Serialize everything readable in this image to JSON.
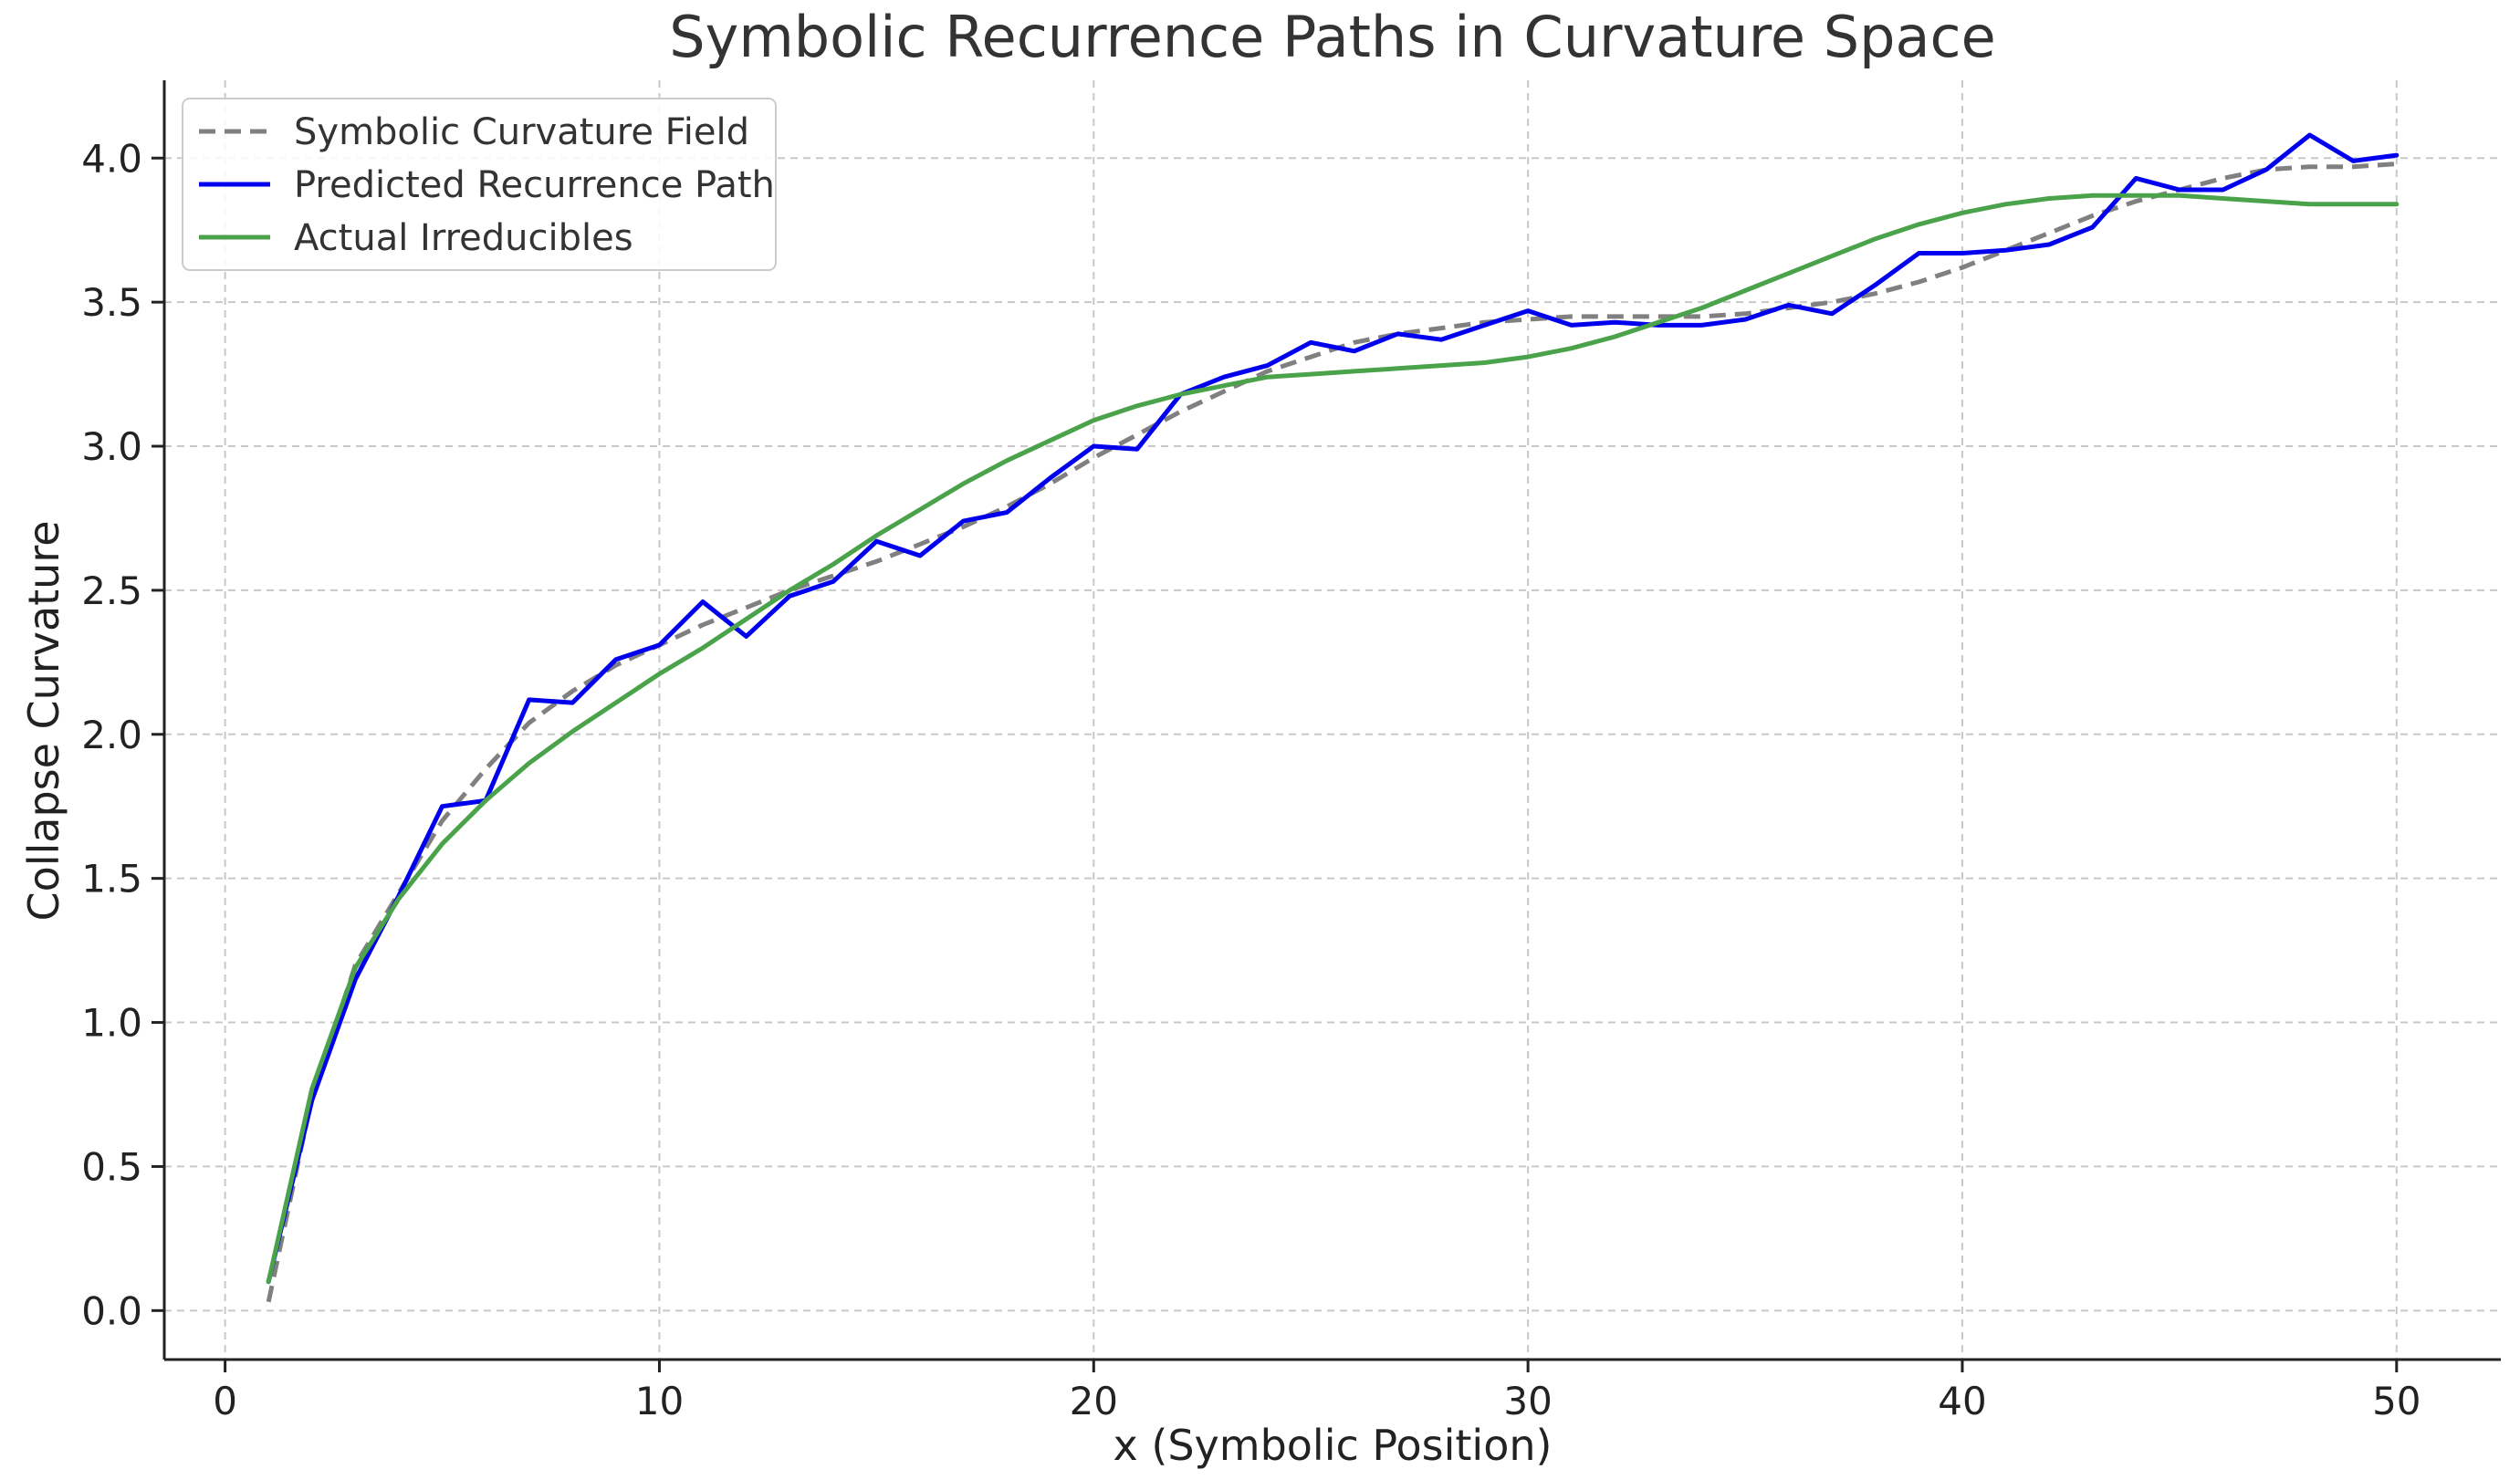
{
  "chart_data": {
    "type": "line",
    "title": "Symbolic Recurrence Paths in Curvature Space",
    "xlabel": "x (Symbolic Position)",
    "ylabel": "Collapse Curvature",
    "xlim": [
      -1.4,
      52.4
    ],
    "ylim": [
      -0.17,
      4.27
    ],
    "x_ticks": [
      0,
      10,
      20,
      30,
      40,
      50
    ],
    "y_ticks": [
      0.0,
      0.5,
      1.0,
      1.5,
      2.0,
      2.5,
      3.0,
      3.5,
      4.0
    ],
    "x_tick_labels": [
      "0",
      "10",
      "20",
      "30",
      "40",
      "50"
    ],
    "y_tick_labels": [
      "0.0",
      "0.5",
      "1.0",
      "1.5",
      "2.0",
      "2.5",
      "3.0",
      "3.5",
      "4.0"
    ],
    "grid": true,
    "legend_position": "top-left",
    "x": [
      1,
      2,
      3,
      4,
      5,
      6,
      7,
      8,
      9,
      10,
      11,
      12,
      13,
      14,
      15,
      16,
      17,
      18,
      19,
      20,
      21,
      22,
      23,
      24,
      25,
      26,
      27,
      28,
      29,
      30,
      31,
      32,
      33,
      34,
      35,
      36,
      37,
      38,
      39,
      40,
      41,
      42,
      43,
      44,
      45,
      46,
      47,
      48,
      49,
      50
    ],
    "series": [
      {
        "name": "Symbolic Curvature Field",
        "color": "#808080",
        "style": "dashed",
        "values": [
          0.03,
          0.74,
          1.2,
          1.45,
          1.7,
          1.88,
          2.04,
          2.15,
          2.24,
          2.31,
          2.38,
          2.44,
          2.5,
          2.55,
          2.6,
          2.66,
          2.72,
          2.79,
          2.87,
          2.96,
          3.04,
          3.12,
          3.19,
          3.26,
          3.31,
          3.36,
          3.39,
          3.41,
          3.43,
          3.44,
          3.45,
          3.45,
          3.45,
          3.45,
          3.46,
          3.48,
          3.5,
          3.53,
          3.57,
          3.62,
          3.68,
          3.74,
          3.8,
          3.85,
          3.89,
          3.93,
          3.96,
          3.97,
          3.97,
          3.98
        ]
      },
      {
        "name": "Predicted Recurrence Path",
        "color": "#0000ee",
        "style": "solid",
        "values": [
          0.1,
          0.73,
          1.15,
          1.44,
          1.75,
          1.77,
          2.12,
          2.11,
          2.26,
          2.31,
          2.46,
          2.34,
          2.48,
          2.53,
          2.67,
          2.62,
          2.74,
          2.77,
          2.89,
          3.0,
          2.99,
          3.18,
          3.24,
          3.28,
          3.36,
          3.33,
          3.39,
          3.37,
          3.42,
          3.47,
          3.42,
          3.43,
          3.42,
          3.42,
          3.44,
          3.49,
          3.46,
          3.56,
          3.67,
          3.67,
          3.68,
          3.7,
          3.76,
          3.93,
          3.89,
          3.89,
          3.96,
          4.08,
          3.99,
          4.01
        ]
      },
      {
        "name": "Actual Irreducibles",
        "color": "#4aa24a",
        "style": "solid",
        "values": [
          0.1,
          0.77,
          1.19,
          1.43,
          1.62,
          1.77,
          1.9,
          2.01,
          2.11,
          2.21,
          2.3,
          2.4,
          2.5,
          2.59,
          2.69,
          2.78,
          2.87,
          2.95,
          3.02,
          3.09,
          3.14,
          3.18,
          3.21,
          3.24,
          3.25,
          3.26,
          3.27,
          3.28,
          3.29,
          3.31,
          3.34,
          3.38,
          3.43,
          3.48,
          3.54,
          3.6,
          3.66,
          3.72,
          3.77,
          3.81,
          3.84,
          3.86,
          3.87,
          3.87,
          3.87,
          3.86,
          3.85,
          3.84,
          3.84,
          3.84
        ]
      }
    ]
  }
}
